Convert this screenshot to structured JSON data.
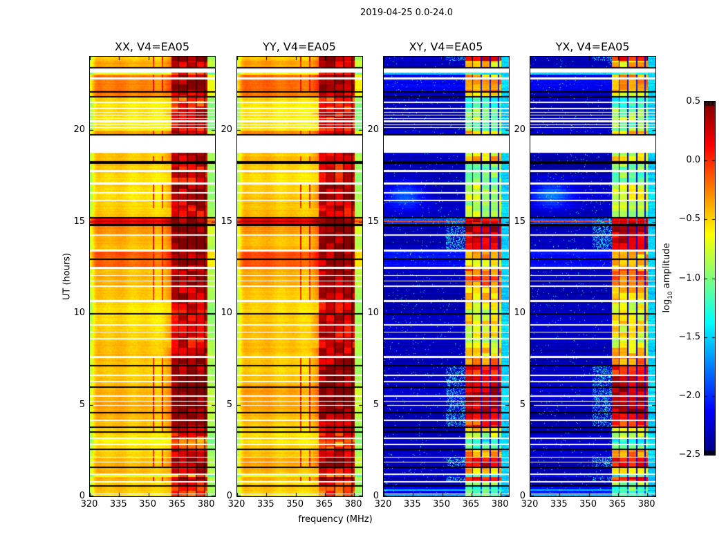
{
  "figure": {
    "background": "#ffffff",
    "axis_color": "#000000"
  },
  "chart_data": {
    "type": "heatmap",
    "title": "2019-04-25 0.0-24.0",
    "xlabel": "frequency (MHz)",
    "ylabel": "UT (hours)",
    "x_range_mhz": [
      320,
      384.2
    ],
    "x_ticks": [
      320,
      335,
      350,
      365,
      380
    ],
    "y_range_hours": [
      0,
      24
    ],
    "y_ticks": [
      0,
      5,
      10,
      15,
      20
    ],
    "panels": [
      {
        "key": "XX",
        "title": "XX, V4=EA05",
        "kind": "auto"
      },
      {
        "key": "YY",
        "title": "YY, V4=EA05",
        "kind": "auto"
      },
      {
        "key": "XY",
        "title": "XY, V4=EA05",
        "kind": "cross"
      },
      {
        "key": "YX",
        "title": "YX, V4=EA05",
        "kind": "cross"
      }
    ],
    "colorbar": {
      "label": "log10 amplitude",
      "colormap": "jet",
      "range": [
        -2.5,
        0.5
      ],
      "ticks": [
        0.5,
        0.0,
        -0.5,
        -1.0,
        -1.5,
        -2.0,
        -2.5
      ]
    },
    "rfi_band_mhz": [
      361.7,
      380.3
    ],
    "band_separators_mhz": [
      365.6,
      370.0,
      374.5,
      379.0
    ],
    "narrow_rfi_lines_mhz": [
      352.7,
      357.4
    ],
    "cross_base_log10amp": -2.32,
    "time_stripes": {
      "format": [
        "t_start_hr",
        "t_end_hr",
        "kind(0=data,1=gap_white,2=flagged_black)",
        "xx_base_log10amp",
        "xx_band_log10amp",
        "xy_band_log10amp",
        "xy_base_log10amp_or_null"
      ],
      "rows": [
        [
          0.0,
          0.1,
          0,
          -0.55,
          -0.1,
          -1.0,
          -1.6
        ],
        [
          0.1,
          0.14,
          1
        ],
        [
          0.14,
          0.3,
          0,
          -0.45,
          -0.05,
          -1.1,
          -2.1
        ],
        [
          0.3,
          0.36,
          0,
          -0.45,
          -0.05,
          -1.0,
          -1.55
        ],
        [
          0.36,
          0.52,
          0,
          -0.45,
          -0.05,
          -1.1,
          -2.1
        ],
        [
          0.52,
          0.6,
          2
        ],
        [
          0.6,
          0.74,
          0,
          -0.5,
          0.05,
          -0.9,
          null
        ],
        [
          0.74,
          0.82,
          1
        ],
        [
          0.82,
          1.06,
          0,
          -0.45,
          0.38,
          0.05,
          null
        ],
        [
          1.06,
          1.16,
          0,
          -0.75,
          -0.3,
          -1.3,
          -2.1
        ],
        [
          1.16,
          1.24,
          1
        ],
        [
          1.24,
          1.54,
          0,
          -0.45,
          0.2,
          -0.45,
          null
        ],
        [
          1.54,
          1.62,
          2
        ],
        [
          1.62,
          1.84,
          0,
          -0.44,
          0.44,
          0.2,
          null
        ],
        [
          1.84,
          1.88,
          1
        ],
        [
          1.88,
          2.1,
          0,
          -0.44,
          0.44,
          0.2,
          null
        ],
        [
          2.1,
          2.16,
          1
        ],
        [
          2.16,
          2.54,
          0,
          -0.5,
          0.3,
          -0.35,
          null
        ],
        [
          2.54,
          2.62,
          2
        ],
        [
          2.62,
          2.78,
          0,
          -0.52,
          -0.1,
          -1.1,
          null
        ],
        [
          2.78,
          2.88,
          1
        ],
        [
          2.88,
          3.12,
          0,
          -0.56,
          -0.2,
          -1.3,
          null
        ],
        [
          3.12,
          3.2,
          1
        ],
        [
          3.2,
          3.46,
          0,
          -0.5,
          0.12,
          -0.8,
          null
        ],
        [
          3.46,
          3.54,
          2
        ],
        [
          3.54,
          3.72,
          0,
          -0.46,
          0.3,
          -0.5,
          null
        ],
        [
          3.72,
          3.8,
          2
        ],
        [
          3.8,
          4.12,
          0,
          -0.46,
          0.36,
          0.0,
          null
        ],
        [
          4.12,
          4.2,
          1
        ],
        [
          4.2,
          4.52,
          0,
          -0.43,
          0.46,
          0.25,
          null
        ],
        [
          4.52,
          4.6,
          2
        ],
        [
          4.6,
          4.94,
          0,
          -0.42,
          0.5,
          0.32,
          null
        ],
        [
          4.94,
          4.99,
          1
        ],
        [
          4.99,
          5.16,
          0,
          -0.42,
          0.5,
          0.32,
          null
        ],
        [
          5.16,
          5.21,
          1
        ],
        [
          5.21,
          5.42,
          0,
          -0.42,
          0.5,
          0.32,
          null
        ],
        [
          5.42,
          5.5,
          1
        ],
        [
          5.5,
          5.92,
          0,
          -0.4,
          0.5,
          0.3,
          null
        ],
        [
          5.92,
          6.0,
          2
        ],
        [
          6.0,
          6.24,
          0,
          -0.43,
          0.46,
          0.22,
          null
        ],
        [
          6.24,
          6.29,
          1
        ],
        [
          6.29,
          6.56,
          0,
          -0.43,
          0.46,
          0.22,
          null
        ],
        [
          6.56,
          6.66,
          1
        ],
        [
          6.66,
          7.1,
          0,
          -0.45,
          0.42,
          0.1,
          null
        ],
        [
          7.1,
          7.18,
          2
        ],
        [
          7.18,
          7.56,
          0,
          -0.45,
          0.34,
          -0.25,
          null
        ],
        [
          7.56,
          7.66,
          1
        ],
        [
          7.66,
          8.12,
          0,
          -0.46,
          0.26,
          -0.5,
          null
        ],
        [
          8.12,
          8.56,
          0,
          -0.49,
          0.16,
          -0.75,
          null
        ],
        [
          8.56,
          8.66,
          1
        ],
        [
          8.66,
          8.94,
          0,
          -0.5,
          0.22,
          -0.65,
          null
        ],
        [
          8.94,
          8.99,
          1
        ],
        [
          8.99,
          9.32,
          0,
          -0.5,
          0.22,
          -0.65,
          null
        ],
        [
          9.32,
          9.4,
          1
        ],
        [
          9.4,
          9.92,
          0,
          -0.5,
          0.26,
          -0.6,
          null
        ],
        [
          9.92,
          10.0,
          2
        ],
        [
          10.0,
          10.62,
          0,
          -0.5,
          0.2,
          -0.7,
          null
        ],
        [
          10.62,
          10.72,
          1
        ],
        [
          10.72,
          11.42,
          0,
          -0.48,
          0.3,
          -0.45,
          null
        ],
        [
          11.42,
          11.52,
          1
        ],
        [
          11.52,
          11.74,
          0,
          -0.45,
          0.36,
          -0.2,
          null
        ],
        [
          11.74,
          11.79,
          1
        ],
        [
          11.79,
          12.04,
          0,
          -0.45,
          0.36,
          -0.2,
          null
        ],
        [
          12.04,
          12.09,
          1
        ],
        [
          12.09,
          12.42,
          0,
          -0.45,
          0.36,
          -0.2,
          null
        ],
        [
          12.42,
          12.52,
          1
        ],
        [
          12.52,
          12.92,
          0,
          -0.15,
          0.32,
          -0.55,
          -2.15
        ],
        [
          12.92,
          13.0,
          2
        ],
        [
          13.0,
          13.36,
          0,
          -0.1,
          0.36,
          -0.4,
          -2.1
        ],
        [
          13.36,
          13.46,
          1
        ],
        [
          13.46,
          14.22,
          0,
          -0.4,
          0.5,
          0.3,
          null
        ],
        [
          14.22,
          14.32,
          1
        ],
        [
          14.32,
          14.76,
          0,
          -0.35,
          0.5,
          0.3,
          null
        ],
        [
          14.76,
          14.86,
          2
        ],
        [
          14.86,
          15.0,
          0,
          0.1,
          0.46,
          0.15,
          -1.9
        ],
        [
          15.0,
          15.06,
          0,
          0.3,
          0.48,
          0.3,
          -0.1
        ],
        [
          15.06,
          15.16,
          0,
          0.1,
          0.46,
          0.15,
          -1.9
        ],
        [
          15.16,
          15.26,
          2
        ],
        [
          15.26,
          15.72,
          0,
          -0.5,
          0.2,
          -0.9,
          null
        ],
        [
          15.72,
          16.12,
          0,
          -0.5,
          0.3,
          -0.85,
          null
        ],
        [
          16.12,
          16.2,
          1
        ],
        [
          16.2,
          16.54,
          0,
          -0.48,
          0.36,
          -0.8,
          null
        ],
        [
          16.54,
          16.59,
          1
        ],
        [
          16.59,
          17.02,
          0,
          -0.48,
          0.36,
          -0.8,
          null
        ],
        [
          17.02,
          17.12,
          1
        ],
        [
          17.12,
          17.7,
          0,
          -0.52,
          0.16,
          -1.0,
          null
        ],
        [
          17.7,
          17.8,
          1
        ],
        [
          17.8,
          18.16,
          0,
          -0.5,
          0.14,
          -0.95,
          null
        ],
        [
          18.16,
          18.3,
          2
        ],
        [
          18.3,
          18.56,
          0,
          -0.48,
          0.3,
          -0.45,
          null
        ],
        [
          18.56,
          18.74,
          0,
          -0.52,
          0.24,
          -0.7,
          null
        ],
        [
          18.74,
          19.68,
          1
        ],
        [
          19.68,
          19.76,
          2
        ],
        [
          19.76,
          19.96,
          0,
          -0.3,
          0.32,
          -0.5,
          null
        ],
        [
          19.96,
          20.1,
          0,
          -0.56,
          0.1,
          -1.0,
          null
        ],
        [
          20.1,
          20.14,
          1
        ],
        [
          20.14,
          20.28,
          0,
          -0.56,
          0.1,
          -1.0,
          null
        ],
        [
          20.28,
          20.32,
          1
        ],
        [
          20.32,
          20.42,
          0,
          -0.56,
          0.08,
          -1.0,
          null
        ],
        [
          20.42,
          20.52,
          1
        ],
        [
          20.52,
          20.62,
          0,
          -0.55,
          0.2,
          -0.9,
          null
        ],
        [
          20.62,
          20.66,
          1
        ],
        [
          20.66,
          20.78,
          0,
          -0.55,
          0.18,
          -0.9,
          null
        ],
        [
          20.78,
          20.82,
          1
        ],
        [
          20.82,
          20.95,
          0,
          -0.55,
          0.22,
          -0.9,
          null
        ],
        [
          20.95,
          20.99,
          1
        ],
        [
          20.99,
          21.12,
          0,
          -0.55,
          0.2,
          -0.9,
          null
        ],
        [
          21.12,
          21.22,
          1
        ],
        [
          21.22,
          21.48,
          0,
          -0.6,
          0.0,
          -1.2,
          null
        ],
        [
          21.48,
          21.56,
          1
        ],
        [
          21.56,
          21.76,
          0,
          -0.55,
          -0.1,
          -1.25,
          null
        ],
        [
          21.76,
          21.86,
          2
        ],
        [
          21.86,
          22.02,
          0,
          -0.3,
          0.2,
          -0.6,
          null
        ],
        [
          22.02,
          22.1,
          2
        ],
        [
          22.1,
          22.76,
          0,
          -0.25,
          0.42,
          -0.3,
          -2.2
        ],
        [
          22.76,
          22.86,
          1
        ],
        [
          22.86,
          23.02,
          0,
          -0.2,
          0.36,
          -0.4,
          -2.2
        ],
        [
          23.02,
          23.12,
          0,
          -0.65,
          0.0,
          -1.3,
          -1.55
        ],
        [
          23.12,
          23.36,
          1
        ],
        [
          23.36,
          23.44,
          2
        ],
        [
          23.44,
          23.76,
          0,
          -0.35,
          0.3,
          -0.5,
          null
        ],
        [
          23.76,
          24.0,
          0,
          -0.45,
          0.46,
          0.1,
          null
        ]
      ]
    }
  }
}
